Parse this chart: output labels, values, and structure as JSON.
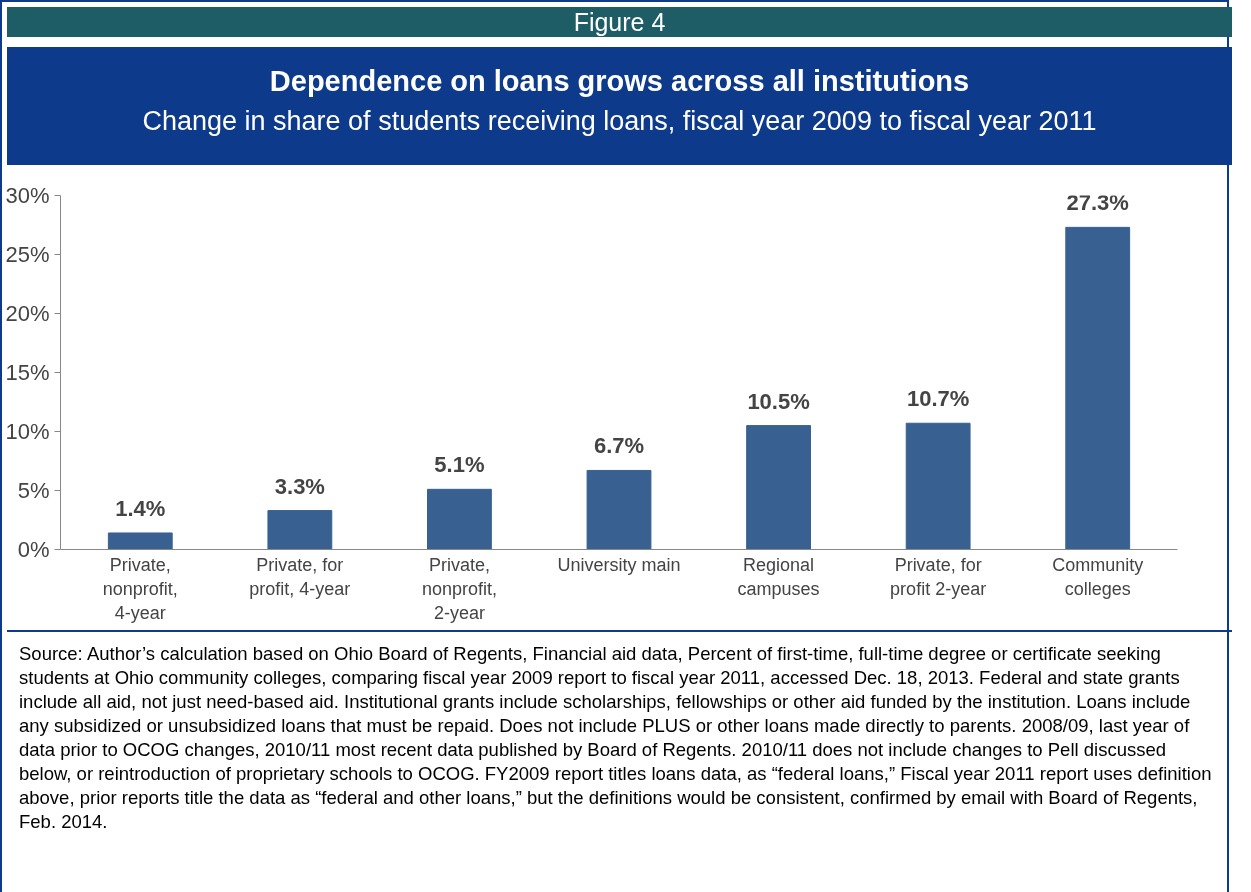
{
  "chart_data": {
    "type": "bar",
    "title": "Dependence on loans grows across all institutions",
    "subtitle": "Change in share of students receiving loans, fiscal year 2009 to fiscal year 2011",
    "annotations": [
      "Figure 4",
      "Source: Author’s calculation based on Ohio Board of Regents, Financial aid data, Percent of first-time, full-time degree or certificate seeking students at Ohio community colleges, comparing fiscal year 2009 report to fiscal year 2011, accessed Dec. 18, 2013. Federal and state grants include all aid, not just need-based aid. Institutional grants include scholarships, fellowships or other aid funded by the institution. Loans include any subsidized or unsubsidized loans that must be repaid. Does not include PLUS or other loans made directly to parents. 2008/09, last year of data prior to OCOG changes, 2010/11 most recent data published by Board of Regents. 2010/11 does not include changes to Pell discussed below, or reintroduction of proprietary schools to OCOG. FY2009 report titles loans data, as “federal loans,” Fiscal year 2011 report uses definition above, prior reports title the data as “federal and other loans,” but the definitions would be consistent, confirmed by email with Board of Regents, Feb. 2014."
    ],
    "categories": [
      "Private, nonprofit, 4-year",
      "Private, for profit, 4-year",
      "Private, nonprofit, 2-year",
      "University main",
      "Regional campuses",
      "Private, for profit 2-year",
      "Community colleges"
    ],
    "values": [
      1.4,
      3.3,
      5.1,
      6.7,
      10.5,
      10.7,
      27.3
    ],
    "value_labels": [
      "1.4%",
      "3.3%",
      "5.1%",
      "6.7%",
      "10.5%",
      "10.7%",
      "27.3%"
    ],
    "color": "#386192",
    "ylim": [
      0,
      30
    ],
    "yticks": [
      {
        "value": 0,
        "label": "0%"
      },
      {
        "value": 5,
        "label": "5%"
      },
      {
        "value": 10,
        "label": "10%"
      },
      {
        "value": 15,
        "label": "15%"
      },
      {
        "value": 20,
        "label": "20%"
      },
      {
        "value": 25,
        "label": "25%"
      },
      {
        "value": 30,
        "label": "30%"
      }
    ],
    "grid": false
  }
}
